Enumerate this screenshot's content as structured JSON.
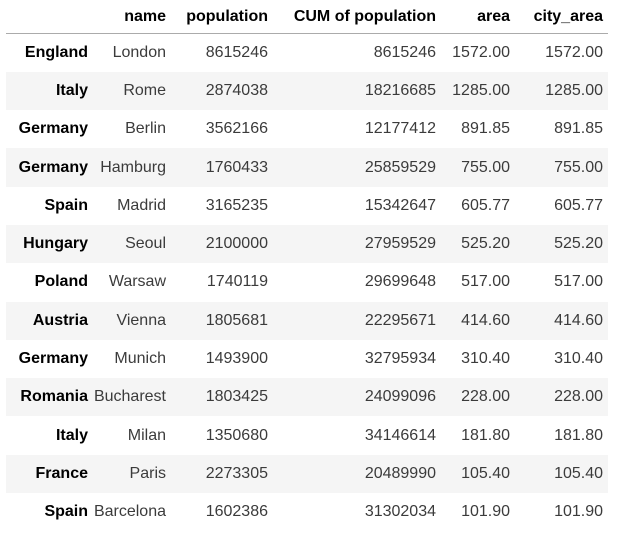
{
  "chart_data": {
    "type": "table",
    "corner_label": "",
    "columns": [
      "name",
      "population",
      "CUM of population",
      "area",
      "city_area"
    ],
    "layout": {
      "striped": true,
      "stripe_color": "#f5f5f5",
      "header_border_color": "#ababab",
      "body_text_color": "#3b3b3b",
      "emphasis_text_color": "#000000",
      "background_color": "#ffffff",
      "index_bold": true,
      "alignment": "right"
    },
    "rows": [
      {
        "index": "England",
        "cells": [
          "London",
          "8615246",
          "8615246",
          "1572.00",
          "1572.00"
        ]
      },
      {
        "index": "Italy",
        "cells": [
          "Rome",
          "2874038",
          "18216685",
          "1285.00",
          "1285.00"
        ]
      },
      {
        "index": "Germany",
        "cells": [
          "Berlin",
          "3562166",
          "12177412",
          "891.85",
          "891.85"
        ]
      },
      {
        "index": "Germany",
        "cells": [
          "Hamburg",
          "1760433",
          "25859529",
          "755.00",
          "755.00"
        ]
      },
      {
        "index": "Spain",
        "cells": [
          "Madrid",
          "3165235",
          "15342647",
          "605.77",
          "605.77"
        ]
      },
      {
        "index": "Hungary",
        "cells": [
          "Seoul",
          "2100000",
          "27959529",
          "525.20",
          "525.20"
        ]
      },
      {
        "index": "Poland",
        "cells": [
          "Warsaw",
          "1740119",
          "29699648",
          "517.00",
          "517.00"
        ]
      },
      {
        "index": "Austria",
        "cells": [
          "Vienna",
          "1805681",
          "22295671",
          "414.60",
          "414.60"
        ]
      },
      {
        "index": "Germany",
        "cells": [
          "Munich",
          "1493900",
          "32795934",
          "310.40",
          "310.40"
        ]
      },
      {
        "index": "Romania",
        "cells": [
          "Bucharest",
          "1803425",
          "24099096",
          "228.00",
          "228.00"
        ]
      },
      {
        "index": "Italy",
        "cells": [
          "Milan",
          "1350680",
          "34146614",
          "181.80",
          "181.80"
        ]
      },
      {
        "index": "France",
        "cells": [
          "Paris",
          "2273305",
          "20489990",
          "105.40",
          "105.40"
        ]
      },
      {
        "index": "Spain",
        "cells": [
          "Barcelona",
          "1602386",
          "31302034",
          "101.90",
          "101.90"
        ]
      }
    ]
  }
}
